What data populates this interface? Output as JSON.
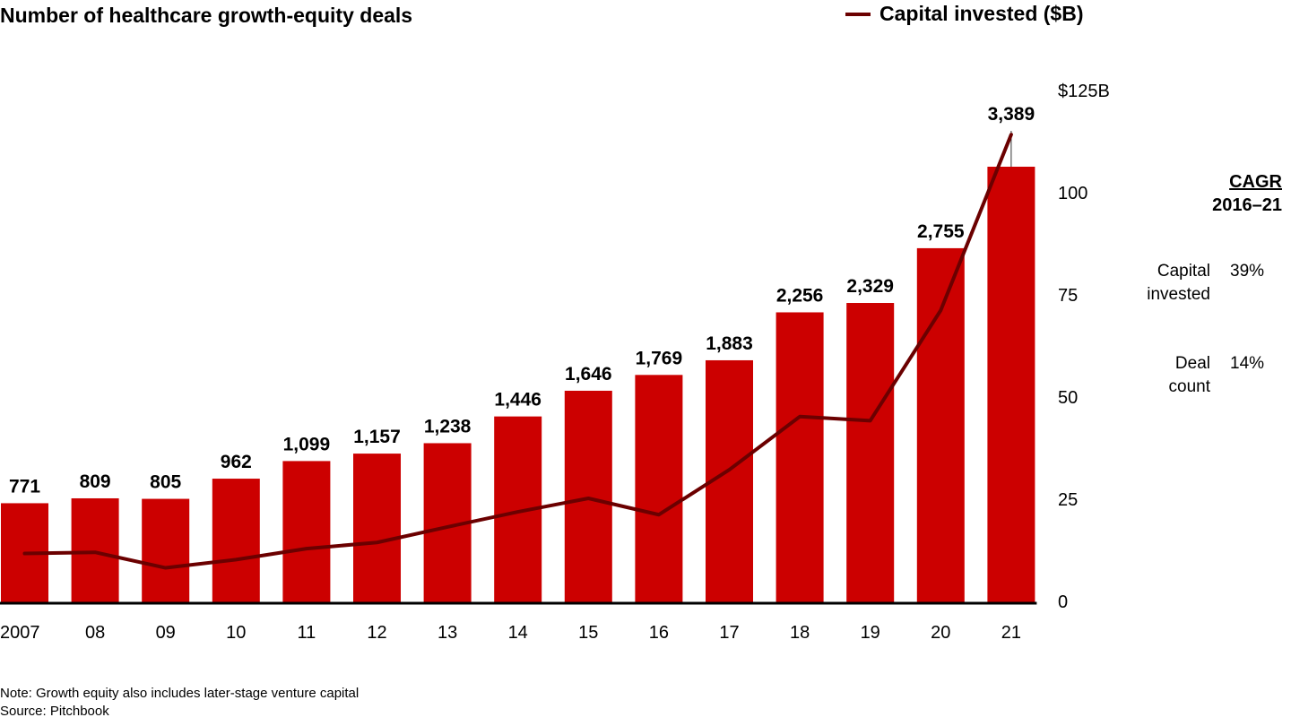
{
  "chart_data": {
    "type": "bar",
    "title": "Number of healthcare growth-equity deals",
    "categories": [
      "2007",
      "08",
      "09",
      "10",
      "11",
      "12",
      "13",
      "14",
      "15",
      "16",
      "17",
      "18",
      "19",
      "20",
      "21"
    ],
    "series": [
      {
        "name": "Number of healthcare growth-equity deals",
        "type": "bar",
        "axis": "left (hidden)",
        "color": "#cc0000",
        "values": [
          771,
          809,
          805,
          962,
          1099,
          1157,
          1238,
          1446,
          1646,
          1769,
          1883,
          2256,
          2329,
          2755,
          3389
        ],
        "labels": [
          "771",
          "809",
          "805",
          "962",
          "1,099",
          "1,157",
          "1,238",
          "1,446",
          "1,646",
          "1,769",
          "1,883",
          "2,256",
          "2,329",
          "2,755",
          "3,389"
        ]
      },
      {
        "name": "Capital invested ($B)",
        "type": "line",
        "axis": "right",
        "color": "#6b0000",
        "values": [
          11.5,
          11.8,
          8,
          10,
          12.7,
          14.2,
          18,
          21.7,
          25,
          21,
          32,
          45,
          44,
          71,
          114
        ]
      }
    ],
    "y_right": {
      "ticks": [
        0,
        25,
        50,
        75,
        100,
        125
      ],
      "tick_labels": [
        "0",
        "25",
        "50",
        "75",
        "100",
        "$125B"
      ],
      "ylim": [
        0,
        125
      ]
    },
    "bar_ylim": [
      0,
      3389
    ],
    "legend": {
      "label": "Capital invested ($B)",
      "position": "top-right"
    },
    "xlabel": "",
    "ylabel": "",
    "grid": false
  },
  "cagr": {
    "title": "CAGR",
    "period": "2016–21",
    "rows": [
      {
        "label_line1": "Capital",
        "label_line2": "invested",
        "value": "39%"
      },
      {
        "label_line1": "Deal",
        "label_line2": "count",
        "value": "14%"
      }
    ]
  },
  "footnotes": {
    "note": "Note: Growth equity also includes later-stage venture capital",
    "source": "Source: Pitchbook"
  }
}
